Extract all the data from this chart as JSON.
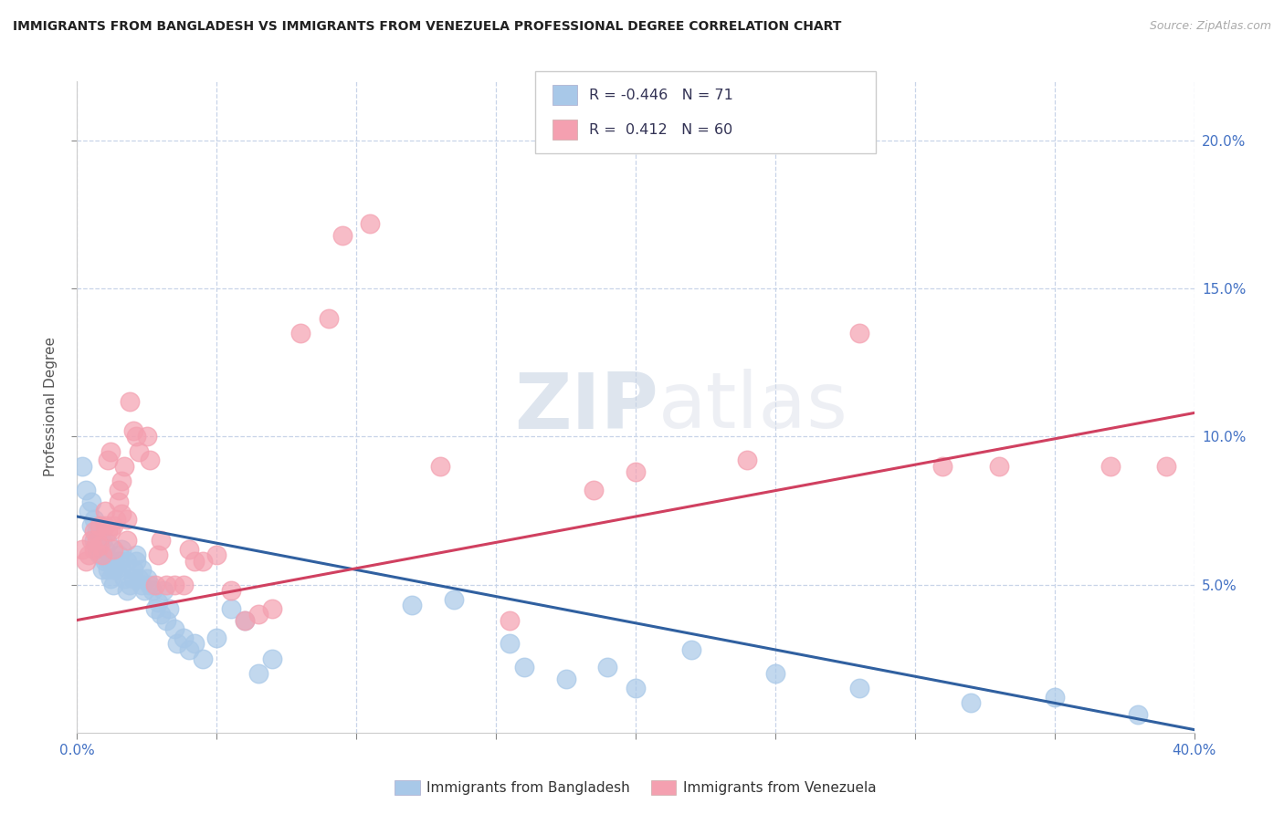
{
  "title": "IMMIGRANTS FROM BANGLADESH VS IMMIGRANTS FROM VENEZUELA PROFESSIONAL DEGREE CORRELATION CHART",
  "source": "Source: ZipAtlas.com",
  "ylabel": "Professional Degree",
  "x_min": 0.0,
  "x_max": 0.4,
  "y_min": 0.0,
  "y_max": 0.22,
  "bangladesh_color": "#a8c8e8",
  "venezuela_color": "#f4a0b0",
  "bangladesh_line_color": "#3060a0",
  "venezuela_line_color": "#d04060",
  "r_bangladesh": -0.446,
  "n_bangladesh": 71,
  "r_venezuela": 0.412,
  "n_venezuela": 60,
  "watermark_zip": "ZIP",
  "watermark_atlas": "atlas",
  "legend_bangladesh": "Immigrants from Bangladesh",
  "legend_venezuela": "Immigrants from Venezuela",
  "bangladesh_line": [
    0.0,
    0.073,
    0.4,
    0.001
  ],
  "venezuela_line": [
    0.0,
    0.038,
    0.4,
    0.108
  ],
  "bangladesh_points": [
    [
      0.002,
      0.09
    ],
    [
      0.003,
      0.082
    ],
    [
      0.004,
      0.075
    ],
    [
      0.005,
      0.078
    ],
    [
      0.005,
      0.07
    ],
    [
      0.006,
      0.072
    ],
    [
      0.006,
      0.065
    ],
    [
      0.007,
      0.068
    ],
    [
      0.007,
      0.062
    ],
    [
      0.008,
      0.07
    ],
    [
      0.008,
      0.06
    ],
    [
      0.009,
      0.065
    ],
    [
      0.009,
      0.055
    ],
    [
      0.01,
      0.062
    ],
    [
      0.01,
      0.058
    ],
    [
      0.011,
      0.064
    ],
    [
      0.011,
      0.055
    ],
    [
      0.012,
      0.058
    ],
    [
      0.012,
      0.052
    ],
    [
      0.013,
      0.055
    ],
    [
      0.013,
      0.05
    ],
    [
      0.014,
      0.055
    ],
    [
      0.015,
      0.06
    ],
    [
      0.015,
      0.058
    ],
    [
      0.016,
      0.062
    ],
    [
      0.016,
      0.055
    ],
    [
      0.017,
      0.052
    ],
    [
      0.018,
      0.058
    ],
    [
      0.018,
      0.048
    ],
    [
      0.019,
      0.05
    ],
    [
      0.02,
      0.055
    ],
    [
      0.02,
      0.052
    ],
    [
      0.021,
      0.06
    ],
    [
      0.021,
      0.058
    ],
    [
      0.022,
      0.052
    ],
    [
      0.023,
      0.055
    ],
    [
      0.023,
      0.05
    ],
    [
      0.024,
      0.048
    ],
    [
      0.025,
      0.052
    ],
    [
      0.026,
      0.05
    ],
    [
      0.027,
      0.048
    ],
    [
      0.028,
      0.042
    ],
    [
      0.029,
      0.044
    ],
    [
      0.03,
      0.04
    ],
    [
      0.031,
      0.048
    ],
    [
      0.032,
      0.038
    ],
    [
      0.033,
      0.042
    ],
    [
      0.035,
      0.035
    ],
    [
      0.036,
      0.03
    ],
    [
      0.038,
      0.032
    ],
    [
      0.04,
      0.028
    ],
    [
      0.042,
      0.03
    ],
    [
      0.045,
      0.025
    ],
    [
      0.05,
      0.032
    ],
    [
      0.055,
      0.042
    ],
    [
      0.06,
      0.038
    ],
    [
      0.065,
      0.02
    ],
    [
      0.07,
      0.025
    ],
    [
      0.12,
      0.043
    ],
    [
      0.135,
      0.045
    ],
    [
      0.155,
      0.03
    ],
    [
      0.16,
      0.022
    ],
    [
      0.175,
      0.018
    ],
    [
      0.19,
      0.022
    ],
    [
      0.2,
      0.015
    ],
    [
      0.22,
      0.028
    ],
    [
      0.25,
      0.02
    ],
    [
      0.28,
      0.015
    ],
    [
      0.32,
      0.01
    ],
    [
      0.35,
      0.012
    ],
    [
      0.38,
      0.006
    ]
  ],
  "venezuela_points": [
    [
      0.002,
      0.062
    ],
    [
      0.003,
      0.058
    ],
    [
      0.004,
      0.06
    ],
    [
      0.005,
      0.065
    ],
    [
      0.006,
      0.068
    ],
    [
      0.006,
      0.062
    ],
    [
      0.007,
      0.065
    ],
    [
      0.008,
      0.07
    ],
    [
      0.008,
      0.063
    ],
    [
      0.009,
      0.06
    ],
    [
      0.01,
      0.07
    ],
    [
      0.01,
      0.075
    ],
    [
      0.011,
      0.068
    ],
    [
      0.011,
      0.092
    ],
    [
      0.012,
      0.068
    ],
    [
      0.012,
      0.095
    ],
    [
      0.013,
      0.07
    ],
    [
      0.013,
      0.062
    ],
    [
      0.014,
      0.072
    ],
    [
      0.015,
      0.078
    ],
    [
      0.015,
      0.082
    ],
    [
      0.016,
      0.074
    ],
    [
      0.016,
      0.085
    ],
    [
      0.017,
      0.09
    ],
    [
      0.018,
      0.065
    ],
    [
      0.018,
      0.072
    ],
    [
      0.019,
      0.112
    ],
    [
      0.02,
      0.102
    ],
    [
      0.021,
      0.1
    ],
    [
      0.022,
      0.095
    ],
    [
      0.025,
      0.1
    ],
    [
      0.026,
      0.092
    ],
    [
      0.028,
      0.05
    ],
    [
      0.029,
      0.06
    ],
    [
      0.03,
      0.065
    ],
    [
      0.032,
      0.05
    ],
    [
      0.035,
      0.05
    ],
    [
      0.038,
      0.05
    ],
    [
      0.04,
      0.062
    ],
    [
      0.042,
      0.058
    ],
    [
      0.045,
      0.058
    ],
    [
      0.05,
      0.06
    ],
    [
      0.055,
      0.048
    ],
    [
      0.06,
      0.038
    ],
    [
      0.065,
      0.04
    ],
    [
      0.07,
      0.042
    ],
    [
      0.08,
      0.135
    ],
    [
      0.09,
      0.14
    ],
    [
      0.095,
      0.168
    ],
    [
      0.105,
      0.172
    ],
    [
      0.13,
      0.09
    ],
    [
      0.155,
      0.038
    ],
    [
      0.185,
      0.082
    ],
    [
      0.2,
      0.088
    ],
    [
      0.24,
      0.092
    ],
    [
      0.28,
      0.135
    ],
    [
      0.31,
      0.09
    ],
    [
      0.33,
      0.09
    ],
    [
      0.37,
      0.09
    ],
    [
      0.39,
      0.09
    ]
  ]
}
